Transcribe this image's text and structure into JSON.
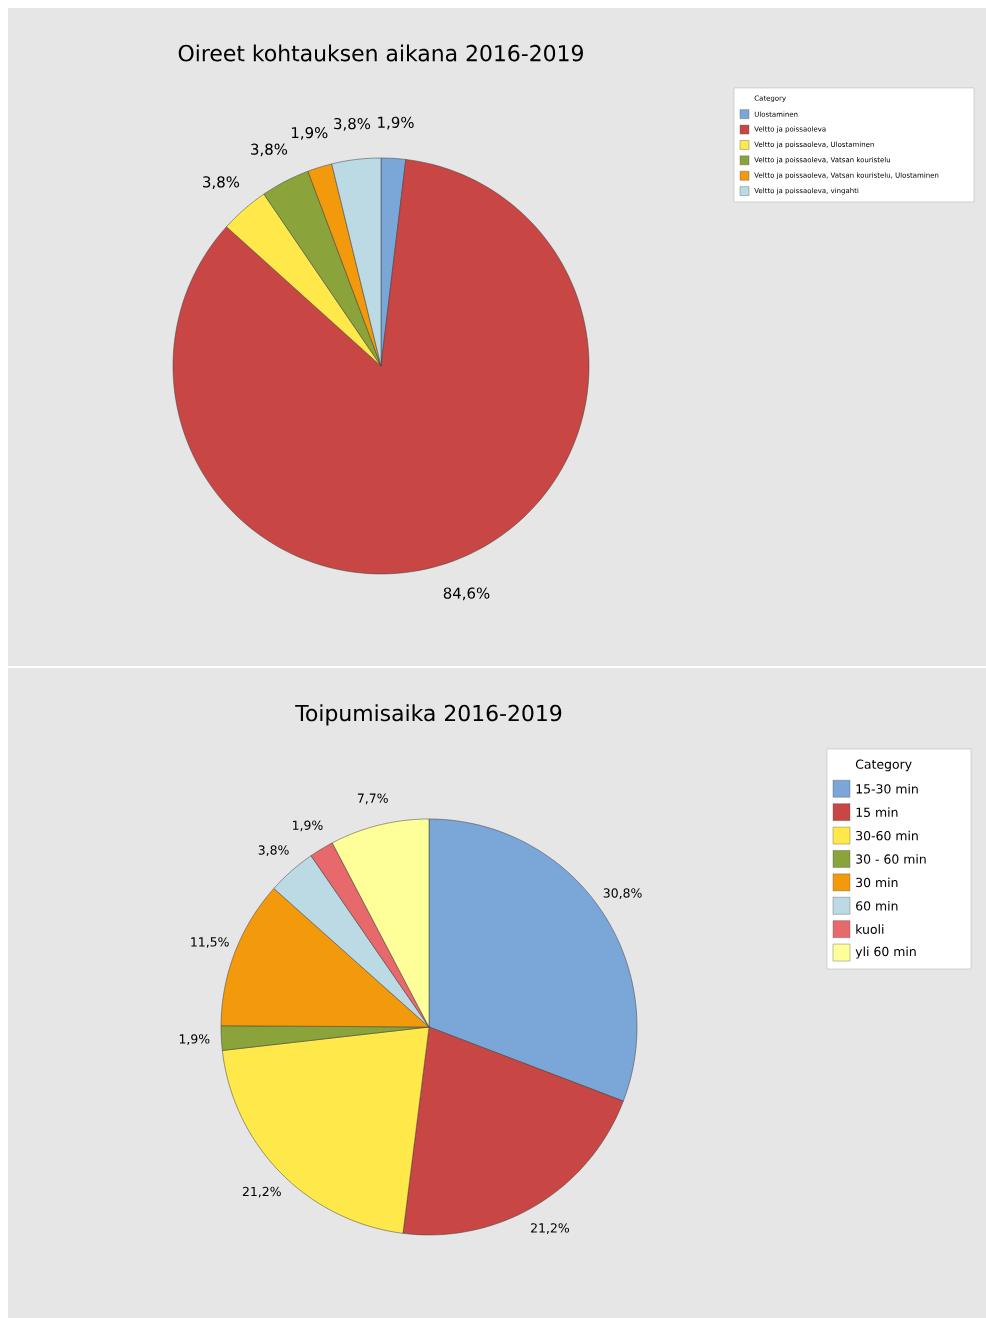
{
  "chart_data": [
    {
      "type": "pie",
      "title": "Oireet kohtauksen aikana 2016-2019",
      "legend_title": "Category",
      "legend": "top right",
      "categories": [
        "Ulostaminen",
        "Veltto ja poissaoleva",
        "Veltto ja poissaoleva, Ulostaminen",
        "Veltto ja poissaoleva, Vatsan kouristelu",
        "Veltto ja poissaoleva, Vatsan kouristelu, Ulostaminen",
        "Veltto ja poissaoleva, vingahti"
      ],
      "values": [
        1.9,
        84.6,
        3.8,
        3.8,
        1.9,
        3.8
      ],
      "value_labels": [
        "1,9%",
        "84,6%",
        "3,8%",
        "3,8%",
        "1,9%",
        "3,8%"
      ],
      "colors": [
        "#7ba6d8",
        "#c84644",
        "#ffe94a",
        "#8aa33a",
        "#f39a0c",
        "#bcdae4"
      ]
    },
    {
      "type": "pie",
      "title": "Toipumisaika 2016-2019",
      "legend_title": "Category",
      "legend": "top right",
      "categories": [
        "15-30 min",
        "15 min",
        "30-60 min",
        "30 - 60 min",
        "30 min",
        "60 min",
        "kuoli",
        "yli 60 min"
      ],
      "values": [
        30.8,
        21.2,
        21.2,
        1.9,
        11.5,
        3.8,
        1.9,
        7.7
      ],
      "value_labels": [
        "30,8%",
        "21,2%",
        "21,2%",
        "1,9%",
        "11,5%",
        "3,8%",
        "1,9%",
        "7,7%"
      ],
      "colors": [
        "#7ba6d8",
        "#c84644",
        "#ffe94a",
        "#8aa33a",
        "#f39a0c",
        "#bcdae4",
        "#e8696b",
        "#ffff99"
      ]
    }
  ]
}
